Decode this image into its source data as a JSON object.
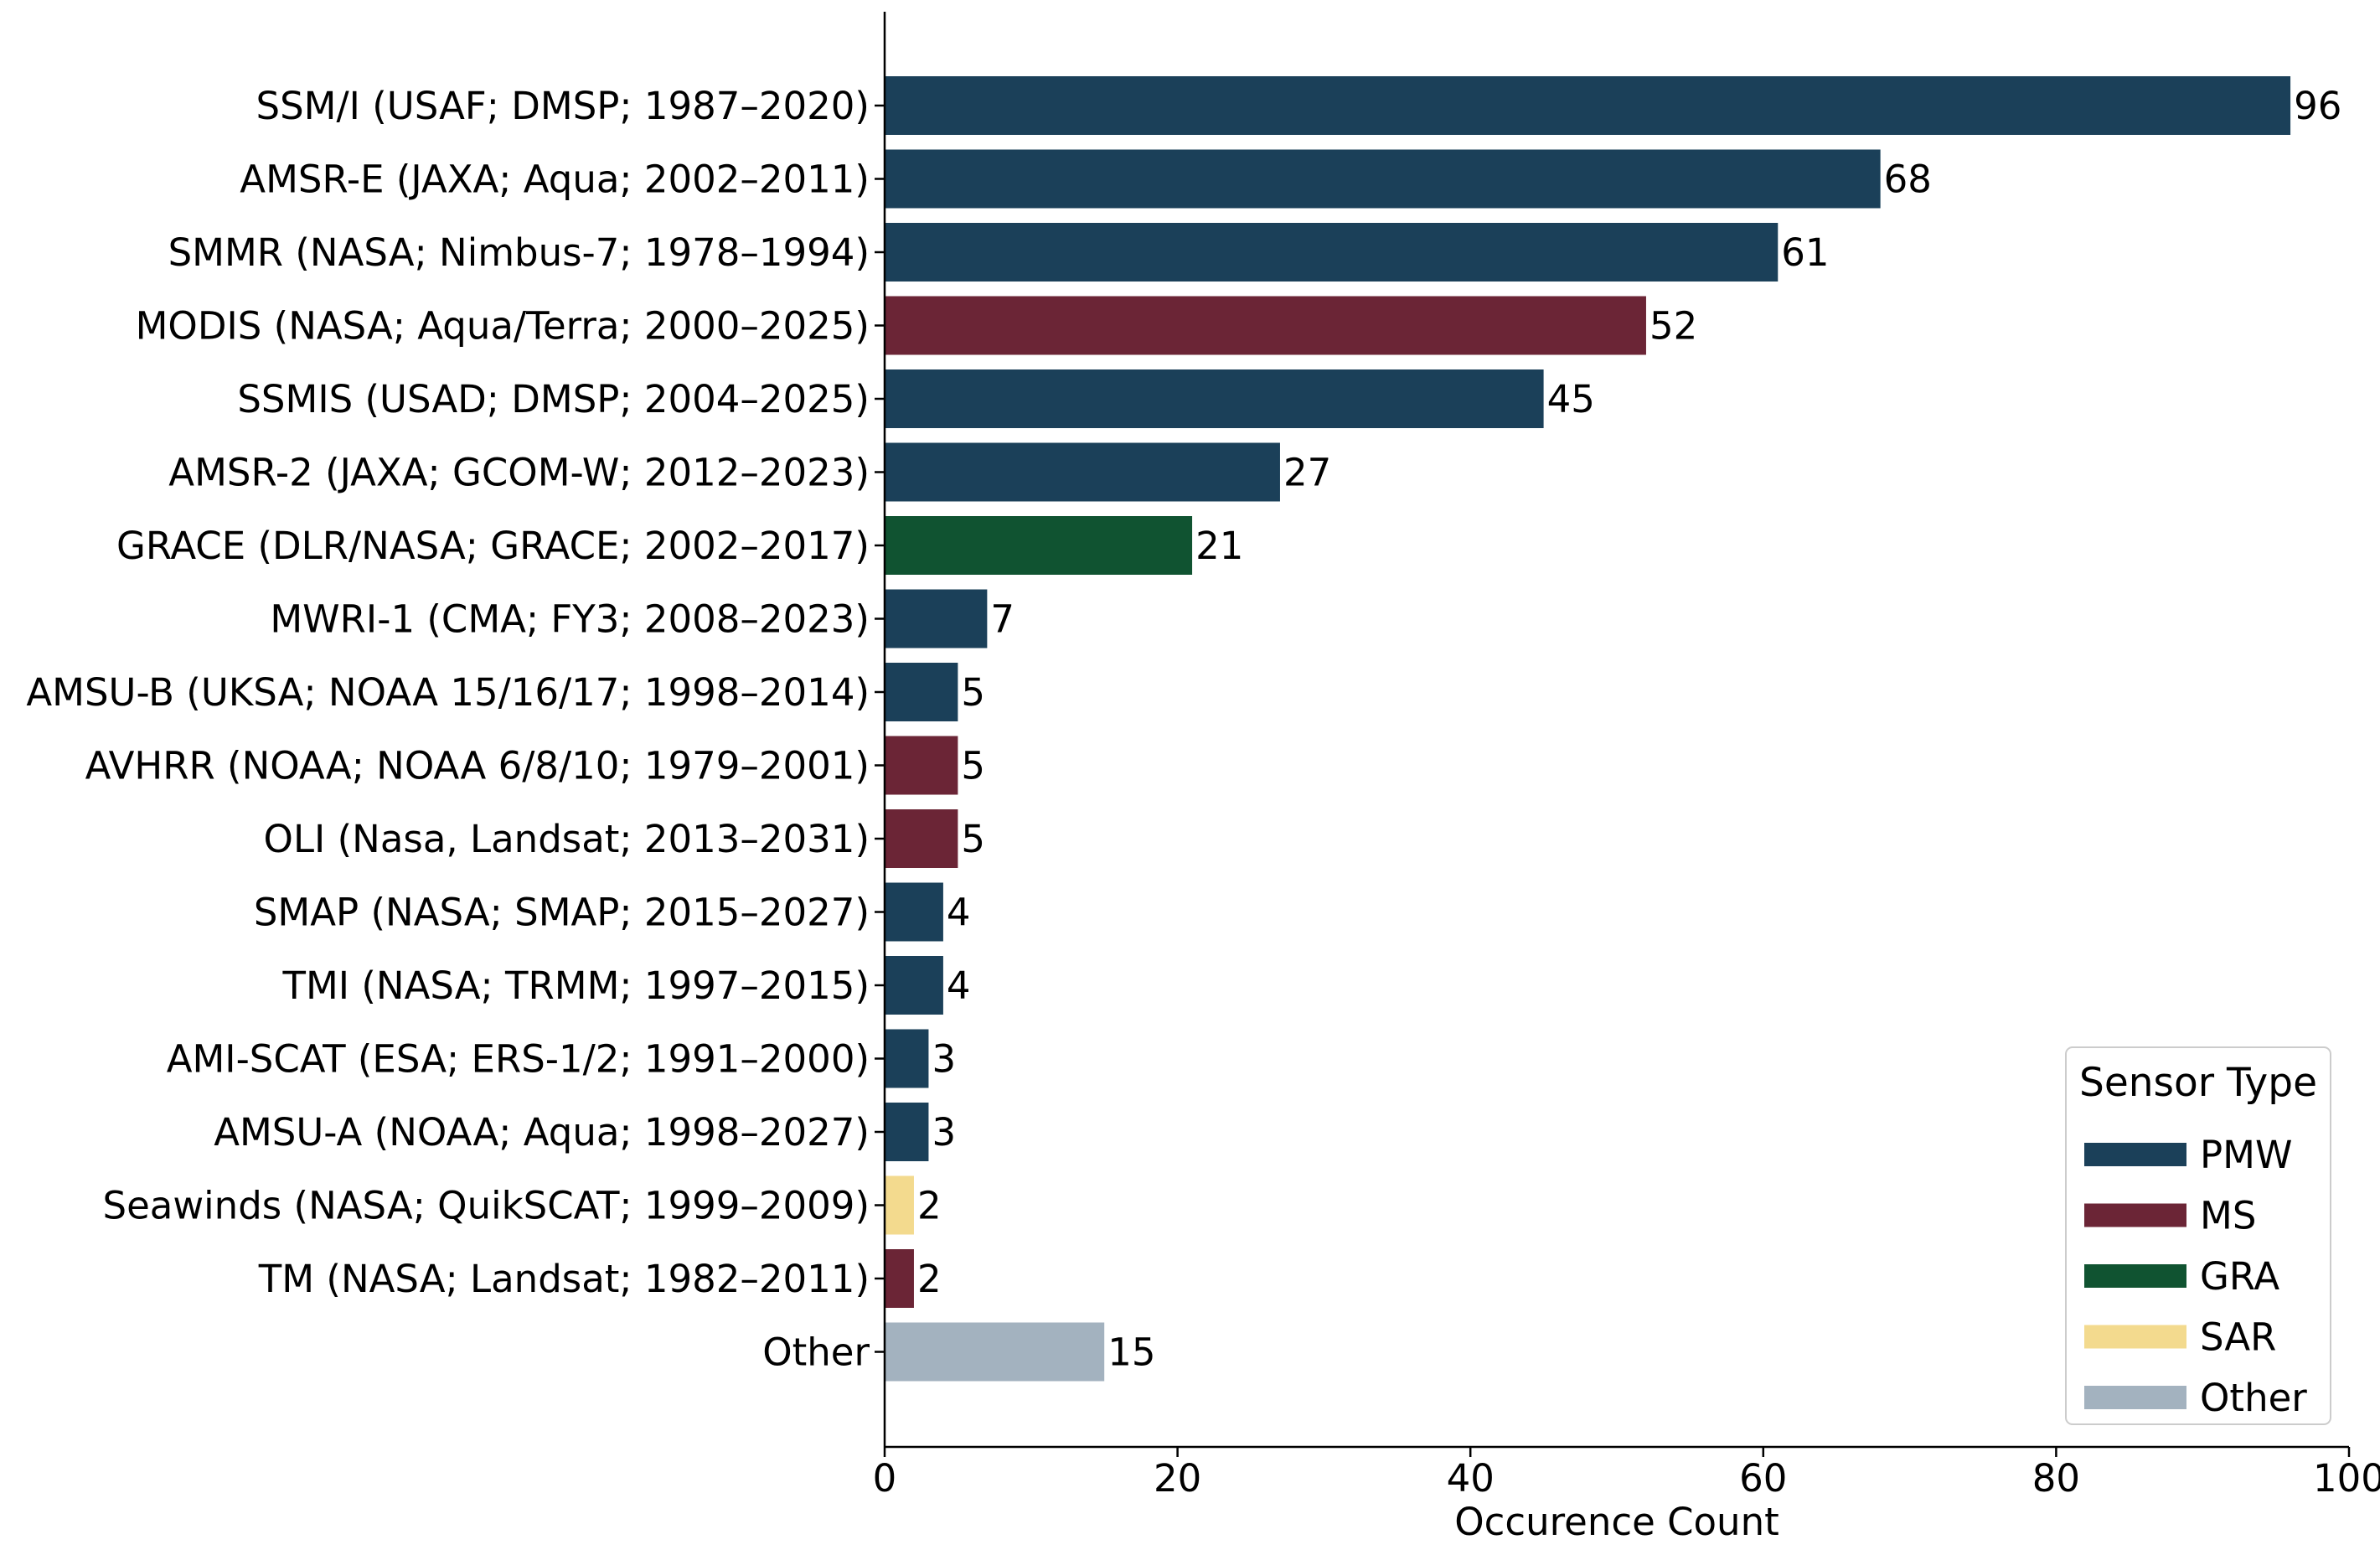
{
  "chart_data": {
    "type": "bar",
    "orientation": "horizontal",
    "title": "",
    "xlabel": "Occurence Count",
    "ylabel": "",
    "xlim": [
      0,
      100
    ],
    "xticks": [
      "0",
      "20",
      "40",
      "60",
      "80",
      "100"
    ],
    "grid": false,
    "legend_position": "bottom-right",
    "legend_title": "Sensor Type",
    "legend": [
      {
        "type": "PMW",
        "color": "#1b4059"
      },
      {
        "type": "MS",
        "color": "#6b2536"
      },
      {
        "type": "GRA",
        "color": "#105331"
      },
      {
        "type": "SAR",
        "color": "#f3da8e"
      },
      {
        "type": "Other",
        "color": "#a3b2bf"
      }
    ],
    "categories": [
      "SSM/I (USAF; DMSP; 1987–2020)",
      "AMSR-E (JAXA; Aqua; 2002–2011)",
      "SMMR (NASA; Nimbus-7; 1978–1994)",
      "MODIS (NASA; Aqua/Terra; 2000–2025)",
      "SSMIS (USAD; DMSP; 2004–2025)",
      "AMSR-2 (JAXA; GCOM-W; 2012–2023)",
      "GRACE (DLR/NASA; GRACE; 2002–2017)",
      "MWRI-1 (CMA; FY3; 2008–2023)",
      "AMSU-B (UKSA; NOAA 15/16/17; 1998–2014)",
      "AVHRR (NOAA; NOAA 6/8/10; 1979–2001)",
      "OLI (Nasa, Landsat; 2013–2031)",
      "SMAP (NASA; SMAP; 2015–2027)",
      "TMI (NASA; TRMM; 1997–2015)",
      "AMI-SCAT (ESA; ERS-1/2; 1991–2000)",
      "AMSU-A (NOAA; Aqua; 1998–2027)",
      "Seawinds (NASA; QuikSCAT; 1999–2009)",
      "TM (NASA; Landsat; 1982–2011)",
      "Other"
    ],
    "values": [
      96,
      68,
      61,
      52,
      45,
      27,
      21,
      7,
      5,
      5,
      5,
      4,
      4,
      3,
      3,
      2,
      2,
      15
    ],
    "value_labels": [
      "96",
      "68",
      "61",
      "52",
      "45",
      "27",
      "21",
      "7",
      "5",
      "5",
      "5",
      "4",
      "4",
      "3",
      "3",
      "2",
      "2",
      "15"
    ],
    "sensor_types": [
      "PMW",
      "PMW",
      "PMW",
      "MS",
      "PMW",
      "PMW",
      "GRA",
      "PMW",
      "PMW",
      "MS",
      "MS",
      "PMW",
      "PMW",
      "PMW",
      "PMW",
      "SAR",
      "MS",
      "Other"
    ]
  }
}
